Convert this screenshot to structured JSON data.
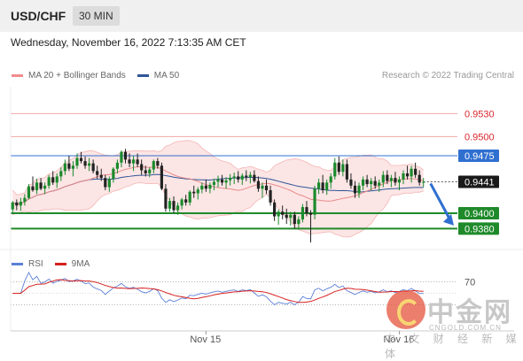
{
  "header": {
    "pair": "USD/CHF",
    "timeframe": "30 MIN"
  },
  "datetime": "Wednesday, November 16, 2022 7:13:35 AM CET",
  "legend": {
    "items": [
      {
        "label": "MA 20 + Bollinger Bands",
        "color": "#f08c8c"
      },
      {
        "label": "MA 50",
        "color": "#2f5597"
      }
    ],
    "credit": "Research © 2022 Trading Central"
  },
  "rsi_legend": {
    "items": [
      {
        "label": "RSI",
        "color": "#5b7fd6"
      },
      {
        "label": "9MA",
        "color": "#d62020"
      }
    ]
  },
  "watermark": {
    "cn": "中金网",
    "en": "CNGOLD.COM.CN",
    "sub": "中 文 财 经 新 媒 体"
  },
  "chart_data": {
    "type": "candlestick",
    "y_range": [
      0.9355,
      0.9565
    ],
    "levels": [
      {
        "value": 0.953,
        "label": "0.9530",
        "kind": "resistance"
      },
      {
        "value": 0.95,
        "label": "0.9500",
        "kind": "resistance"
      },
      {
        "value": 0.9475,
        "label": "0.9475",
        "kind": "pivot"
      },
      {
        "value": 0.9441,
        "label": "0.9441",
        "kind": "last"
      },
      {
        "value": 0.94,
        "label": "0.9400",
        "kind": "support"
      },
      {
        "value": 0.938,
        "label": "0.9380",
        "kind": "support"
      }
    ],
    "x_ticks": [
      {
        "label": "Nov 15",
        "bar": 48
      },
      {
        "label": "Nov 16",
        "bar": 96
      }
    ],
    "rsi_levels": [
      70,
      30
    ],
    "rsi_tick_labels": [
      "70",
      ""
    ],
    "candles": [
      [
        0.9405,
        0.9416,
        0.94,
        0.9414
      ],
      [
        0.9414,
        0.9418,
        0.9404,
        0.941
      ],
      [
        0.941,
        0.942,
        0.9403,
        0.9415
      ],
      [
        0.9415,
        0.9425,
        0.941,
        0.942
      ],
      [
        0.942,
        0.9438,
        0.9418,
        0.9435
      ],
      [
        0.9435,
        0.9448,
        0.9428,
        0.943
      ],
      [
        0.943,
        0.9445,
        0.9425,
        0.944
      ],
      [
        0.944,
        0.9446,
        0.943,
        0.9432
      ],
      [
        0.9432,
        0.944,
        0.9425,
        0.9436
      ],
      [
        0.9436,
        0.945,
        0.9432,
        0.9447
      ],
      [
        0.9447,
        0.9455,
        0.9437,
        0.944
      ],
      [
        0.944,
        0.9452,
        0.9433,
        0.9448
      ],
      [
        0.9448,
        0.946,
        0.9442,
        0.9455
      ],
      [
        0.9455,
        0.947,
        0.945,
        0.9465
      ],
      [
        0.9465,
        0.9475,
        0.9455,
        0.9458
      ],
      [
        0.9458,
        0.9468,
        0.9448,
        0.9462
      ],
      [
        0.9462,
        0.9478,
        0.9458,
        0.9472
      ],
      [
        0.9472,
        0.948,
        0.9465,
        0.9468
      ],
      [
        0.9468,
        0.9474,
        0.9458,
        0.9462
      ],
      [
        0.9462,
        0.9472,
        0.9455,
        0.9465
      ],
      [
        0.9465,
        0.947,
        0.9452,
        0.9455
      ],
      [
        0.9455,
        0.9462,
        0.9445,
        0.945
      ],
      [
        0.945,
        0.9458,
        0.9442,
        0.9446
      ],
      [
        0.9446,
        0.945,
        0.943,
        0.9434
      ],
      [
        0.9434,
        0.9448,
        0.9428,
        0.9445
      ],
      [
        0.9445,
        0.946,
        0.944,
        0.9458
      ],
      [
        0.9458,
        0.947,
        0.9452,
        0.9466
      ],
      [
        0.9466,
        0.9482,
        0.946,
        0.948
      ],
      [
        0.948,
        0.9484,
        0.9465,
        0.947
      ],
      [
        0.947,
        0.9478,
        0.946,
        0.9465
      ],
      [
        0.9465,
        0.9475,
        0.9455,
        0.947
      ],
      [
        0.947,
        0.9478,
        0.946,
        0.9464
      ],
      [
        0.9464,
        0.947,
        0.945,
        0.9456
      ],
      [
        0.9456,
        0.9462,
        0.9448,
        0.9452
      ],
      [
        0.9452,
        0.946,
        0.9447,
        0.9457
      ],
      [
        0.9457,
        0.947,
        0.9452,
        0.9468
      ],
      [
        0.9468,
        0.9472,
        0.9458,
        0.9462
      ],
      [
        0.9462,
        0.9466,
        0.943,
        0.9432
      ],
      [
        0.9432,
        0.9438,
        0.9402,
        0.9406
      ],
      [
        0.9406,
        0.942,
        0.9402,
        0.9416
      ],
      [
        0.9416,
        0.9422,
        0.94,
        0.9404
      ],
      [
        0.9404,
        0.9414,
        0.9398,
        0.941
      ],
      [
        0.941,
        0.942,
        0.9405,
        0.9418
      ],
      [
        0.9418,
        0.9424,
        0.941,
        0.9414
      ],
      [
        0.9414,
        0.943,
        0.941,
        0.9428
      ],
      [
        0.9428,
        0.9436,
        0.942,
        0.9426
      ],
      [
        0.9426,
        0.9434,
        0.9418,
        0.9431
      ],
      [
        0.9431,
        0.944,
        0.9426,
        0.9436
      ],
      [
        0.9436,
        0.9444,
        0.9428,
        0.9432
      ],
      [
        0.9432,
        0.944,
        0.9426,
        0.9437
      ],
      [
        0.9437,
        0.9445,
        0.943,
        0.9441
      ],
      [
        0.9441,
        0.9449,
        0.9434,
        0.9444
      ],
      [
        0.9444,
        0.945,
        0.9436,
        0.944
      ],
      [
        0.944,
        0.9447,
        0.9432,
        0.9443
      ],
      [
        0.9443,
        0.9451,
        0.9436,
        0.9446
      ],
      [
        0.9446,
        0.9453,
        0.9438,
        0.9448
      ],
      [
        0.9448,
        0.9455,
        0.944,
        0.9444
      ],
      [
        0.9444,
        0.9452,
        0.9437,
        0.9449
      ],
      [
        0.9449,
        0.9456,
        0.9442,
        0.9447
      ],
      [
        0.9447,
        0.9454,
        0.9439,
        0.945
      ],
      [
        0.945,
        0.9456,
        0.944,
        0.9442
      ],
      [
        0.9442,
        0.9448,
        0.9428,
        0.9432
      ],
      [
        0.9432,
        0.944,
        0.942,
        0.9436
      ],
      [
        0.9436,
        0.9444,
        0.9425,
        0.943
      ],
      [
        0.943,
        0.9436,
        0.941,
        0.9414
      ],
      [
        0.9414,
        0.9418,
        0.939,
        0.9396
      ],
      [
        0.9396,
        0.9405,
        0.9385,
        0.9402
      ],
      [
        0.9402,
        0.941,
        0.9392,
        0.9398
      ],
      [
        0.9398,
        0.9406,
        0.9386,
        0.9394
      ],
      [
        0.9394,
        0.9402,
        0.9384,
        0.9398
      ],
      [
        0.9398,
        0.9402,
        0.938,
        0.9386
      ],
      [
        0.9386,
        0.9396,
        0.938,
        0.9392
      ],
      [
        0.9392,
        0.9412,
        0.9388,
        0.9408
      ],
      [
        0.9408,
        0.9416,
        0.9396,
        0.94
      ],
      [
        0.94,
        0.9404,
        0.9362,
        0.9398
      ],
      [
        0.9398,
        0.9436,
        0.9392,
        0.9432
      ],
      [
        0.9432,
        0.9445,
        0.9425,
        0.944
      ],
      [
        0.944,
        0.945,
        0.9426,
        0.943
      ],
      [
        0.943,
        0.9444,
        0.9424,
        0.944
      ],
      [
        0.944,
        0.9452,
        0.9432,
        0.9448
      ],
      [
        0.9448,
        0.9472,
        0.9444,
        0.9466
      ],
      [
        0.9466,
        0.9474,
        0.945,
        0.9454
      ],
      [
        0.9454,
        0.947,
        0.9448,
        0.9464
      ],
      [
        0.9464,
        0.947,
        0.944,
        0.9444
      ],
      [
        0.9444,
        0.9452,
        0.9432,
        0.9436
      ],
      [
        0.9436,
        0.9442,
        0.942,
        0.9426
      ],
      [
        0.9426,
        0.944,
        0.942,
        0.9436
      ],
      [
        0.9436,
        0.9448,
        0.943,
        0.9444
      ],
      [
        0.9444,
        0.945,
        0.9434,
        0.9438
      ],
      [
        0.9438,
        0.9446,
        0.943,
        0.9442
      ],
      [
        0.9442,
        0.9448,
        0.9432,
        0.9436
      ],
      [
        0.9436,
        0.9444,
        0.9428,
        0.944
      ],
      [
        0.944,
        0.9455,
        0.9434,
        0.945
      ],
      [
        0.945,
        0.9456,
        0.9438,
        0.9442
      ],
      [
        0.9442,
        0.945,
        0.9434,
        0.9446
      ],
      [
        0.9446,
        0.9454,
        0.9436,
        0.944
      ],
      [
        0.944,
        0.9448,
        0.943,
        0.9444
      ],
      [
        0.9444,
        0.9456,
        0.9438,
        0.9452
      ],
      [
        0.9452,
        0.9462,
        0.9444,
        0.9448
      ],
      [
        0.9448,
        0.9462,
        0.944,
        0.9458
      ],
      [
        0.9458,
        0.9466,
        0.9446,
        0.945
      ],
      [
        0.945,
        0.9456,
        0.9436,
        0.944
      ],
      [
        0.944,
        0.9446,
        0.9434,
        0.9441
      ]
    ]
  }
}
